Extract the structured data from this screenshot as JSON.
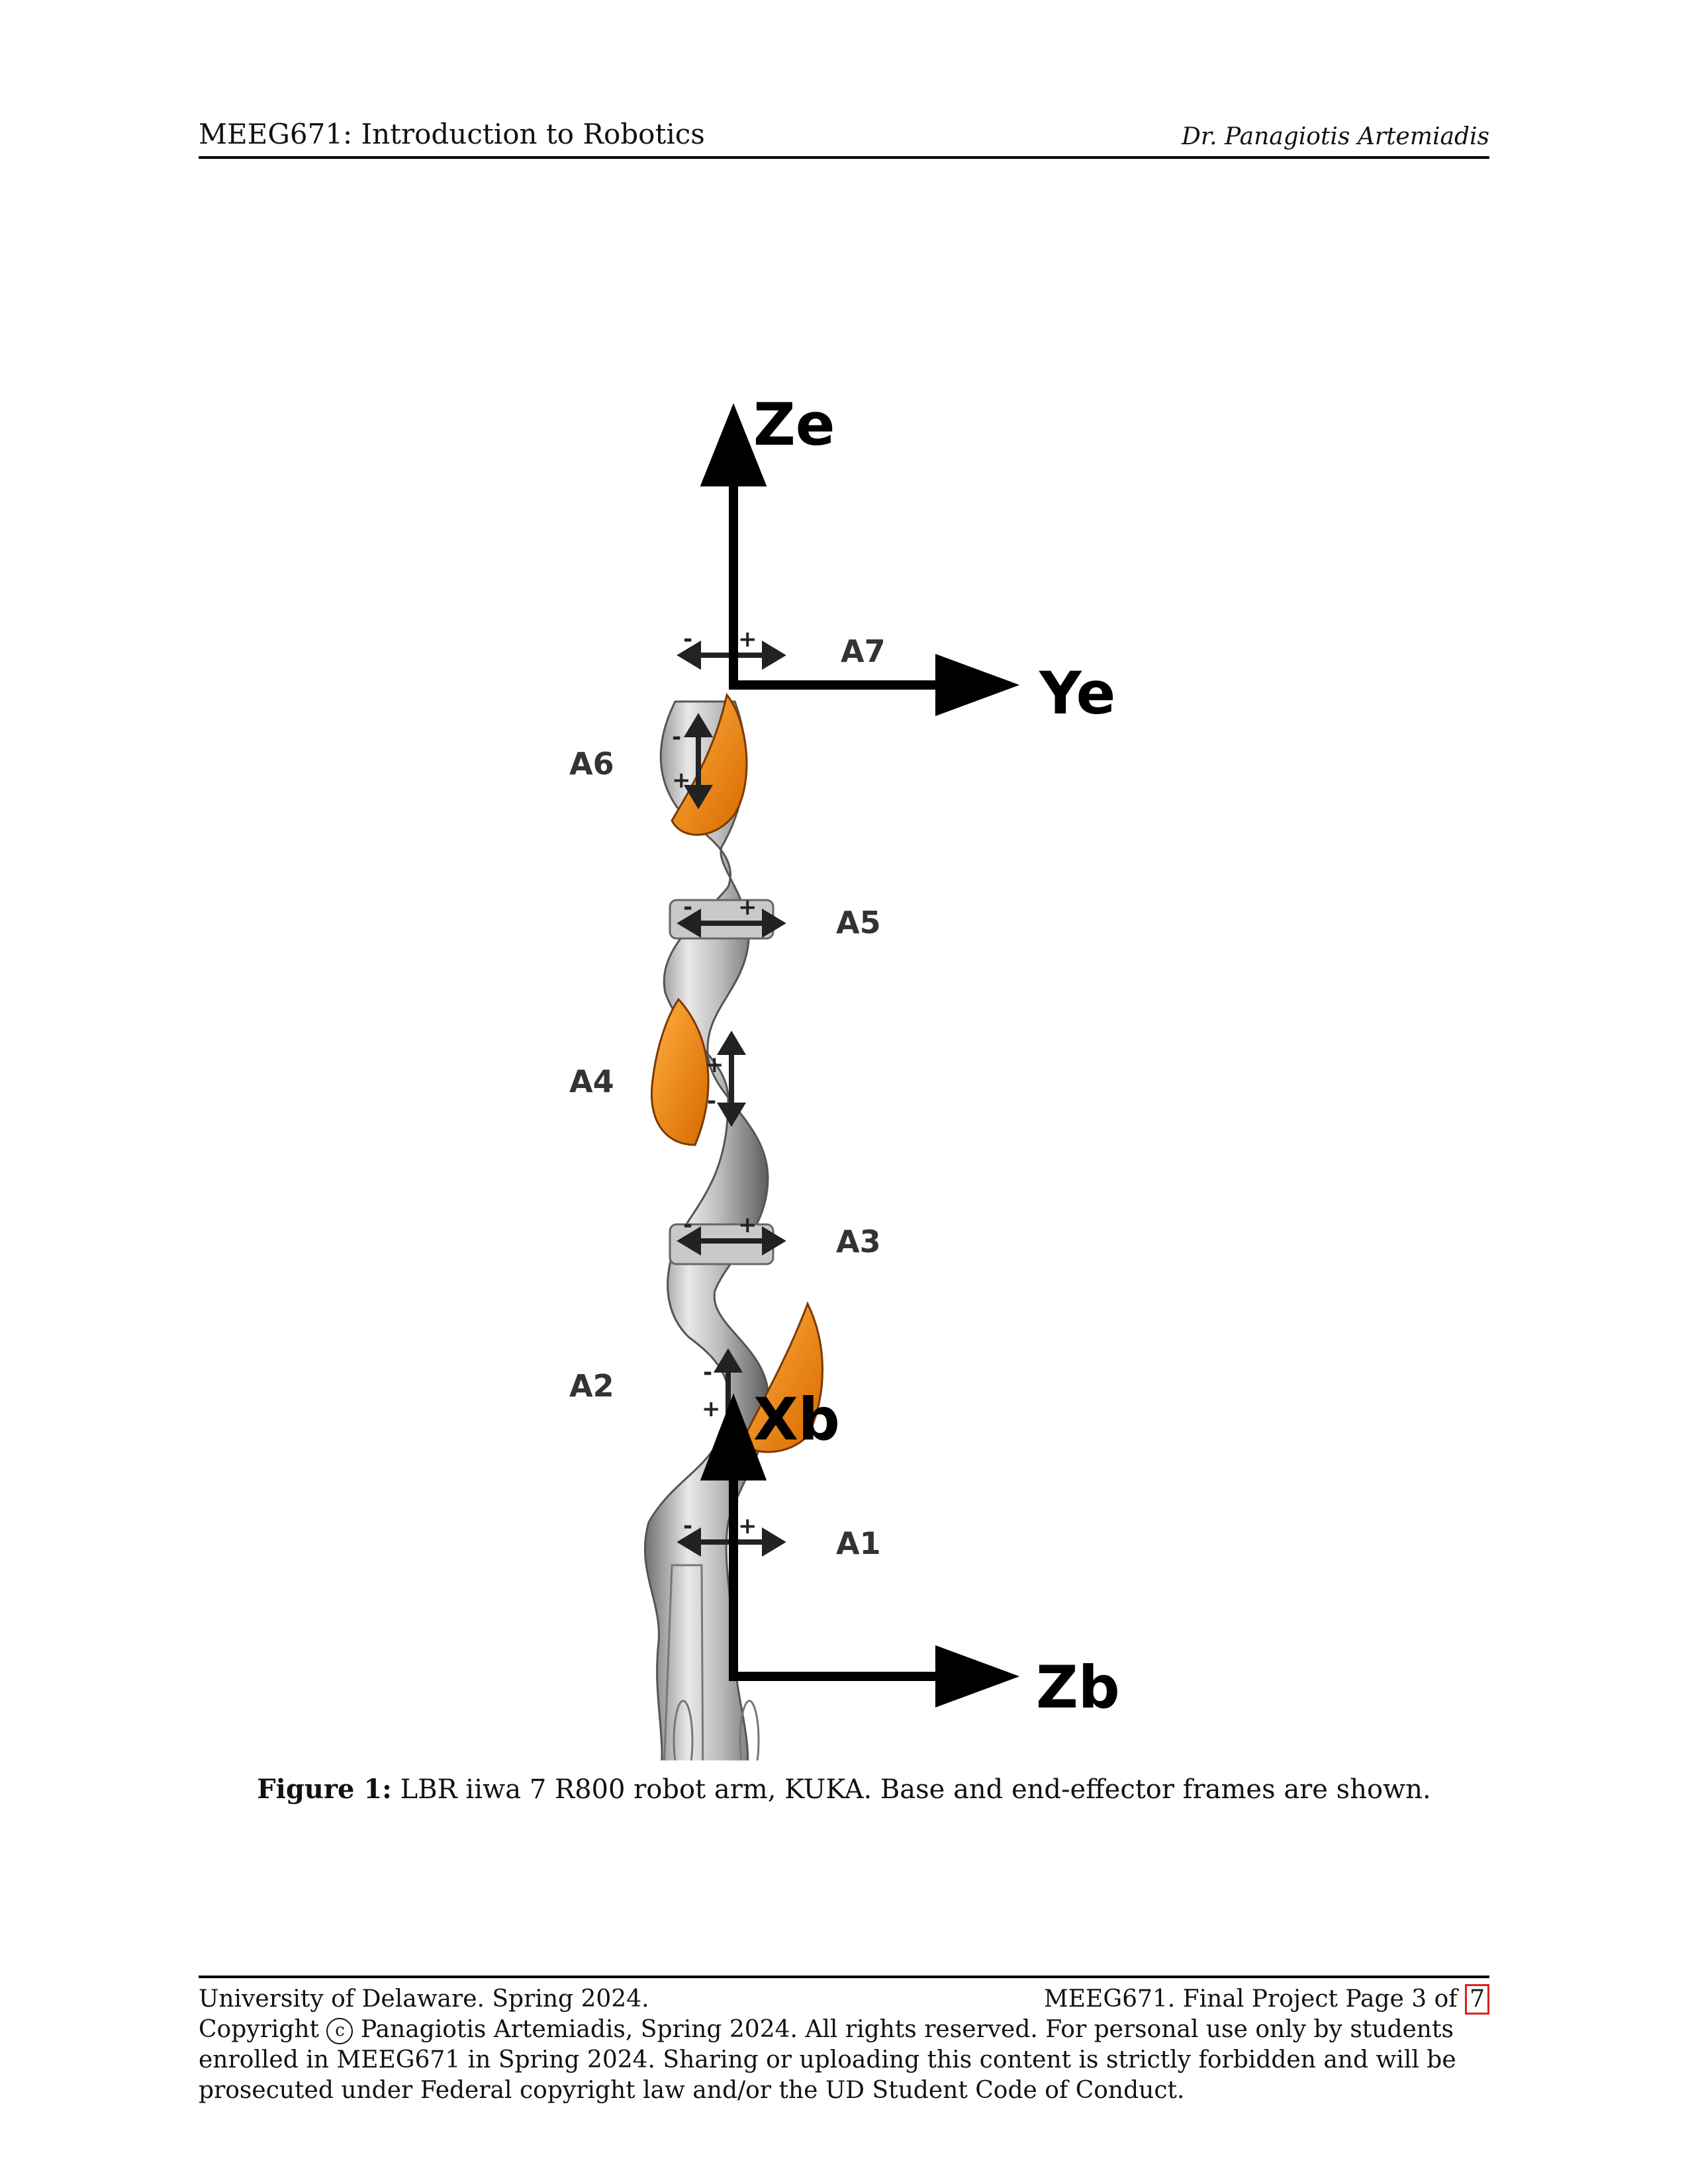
{
  "header": {
    "course": "MEEG671: Introduction to Robotics",
    "instructor": "Dr. Panagiotis Artemiadis"
  },
  "figure": {
    "end_effector_labels": {
      "z": "Ze",
      "y": "Ye"
    },
    "base_labels": {
      "x": "Xb",
      "z": "Zb"
    },
    "joint_labels": [
      "A1",
      "A2",
      "A3",
      "A4",
      "A5",
      "A6",
      "A7"
    ],
    "plus_sign": "+",
    "minus_sign": "-",
    "accent_color": "#f08a10"
  },
  "caption": {
    "label": "Figure 1:",
    "text": "LBR iiwa 7 R800 robot arm, KUKA. Base and end-effector frames are shown."
  },
  "footer": {
    "left": "University of Delaware. Spring 2024.",
    "right_prefix": "MEEG671. Final Project Page 3  of",
    "total_pages": "7",
    "copyright_prefix": "Copyright",
    "copyright_symbol": "c",
    "copyright_text": "Panagiotis Artemiadis, Spring 2024. All rights reserved. For personal use only by students enrolled in MEEG671 in Spring 2024. Sharing or uploading this content is strictly forbidden and will be prosecuted under Federal copyright law and/or the UD Student Code of Conduct."
  }
}
